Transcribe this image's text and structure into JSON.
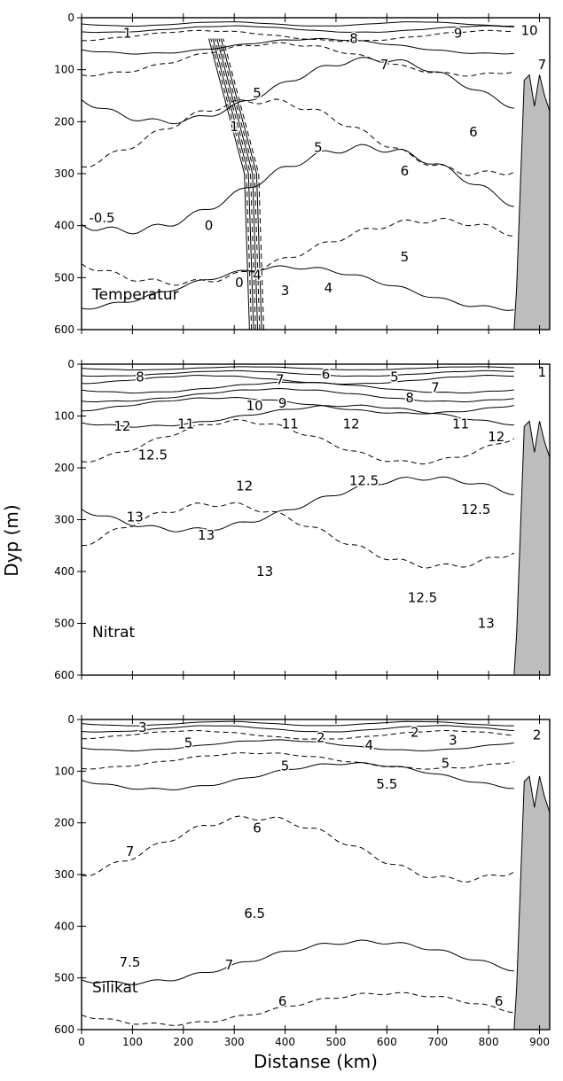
{
  "chart_data": {
    "type": "contour",
    "shared_xlabel": "Distanse (km)",
    "shared_ylabel": "Dyp (m)",
    "xlim": [
      0,
      920
    ],
    "ylim": [
      600,
      0
    ],
    "x_ticks": [
      "0",
      "100",
      "200",
      "300",
      "400",
      "500",
      "600",
      "700",
      "800",
      "900"
    ],
    "y_ticks": [
      "0",
      "100",
      "200",
      "300",
      "400",
      "500",
      "600"
    ],
    "land_boundary": {
      "x": [
        850,
        855,
        870,
        880,
        890,
        900,
        910,
        920,
        920
      ],
      "y": [
        600,
        520,
        120,
        110,
        170,
        110,
        150,
        180,
        0
      ]
    },
    "panels": [
      {
        "name": "Temperatur",
        "contour_labels": [
          {
            "text": "1",
            "x": 90,
            "y": 30
          },
          {
            "text": "8",
            "x": 535,
            "y": 40
          },
          {
            "text": "9",
            "x": 740,
            "y": 30
          },
          {
            "text": "10",
            "x": 880,
            "y": 25
          },
          {
            "text": "7",
            "x": 595,
            "y": 90
          },
          {
            "text": "7",
            "x": 905,
            "y": 90
          },
          {
            "text": "5",
            "x": 345,
            "y": 145
          },
          {
            "text": "1",
            "x": 300,
            "y": 210
          },
          {
            "text": "6",
            "x": 770,
            "y": 220
          },
          {
            "text": "5",
            "x": 465,
            "y": 250
          },
          {
            "text": "6",
            "x": 635,
            "y": 295
          },
          {
            "text": "-0.5",
            "x": 40,
            "y": 385
          },
          {
            "text": "0",
            "x": 250,
            "y": 400
          },
          {
            "text": "5",
            "x": 635,
            "y": 460
          },
          {
            "text": "0",
            "x": 310,
            "y": 510
          },
          {
            "text": "4",
            "x": 345,
            "y": 495
          },
          {
            "text": "3",
            "x": 400,
            "y": 525
          },
          {
            "text": "4",
            "x": 485,
            "y": 520
          }
        ]
      },
      {
        "name": "Nitrat",
        "contour_labels": [
          {
            "text": "8",
            "x": 115,
            "y": 25
          },
          {
            "text": "7",
            "x": 390,
            "y": 30
          },
          {
            "text": "6",
            "x": 480,
            "y": 20
          },
          {
            "text": "5",
            "x": 615,
            "y": 25
          },
          {
            "text": "7",
            "x": 695,
            "y": 45
          },
          {
            "text": "8",
            "x": 645,
            "y": 65
          },
          {
            "text": "1",
            "x": 905,
            "y": 15
          },
          {
            "text": "10",
            "x": 340,
            "y": 80
          },
          {
            "text": "9",
            "x": 395,
            "y": 75
          },
          {
            "text": "12",
            "x": 80,
            "y": 120
          },
          {
            "text": "11",
            "x": 205,
            "y": 115
          },
          {
            "text": "11",
            "x": 410,
            "y": 115
          },
          {
            "text": "12",
            "x": 530,
            "y": 115
          },
          {
            "text": "11",
            "x": 745,
            "y": 115
          },
          {
            "text": "12",
            "x": 815,
            "y": 140
          },
          {
            "text": "12.5",
            "x": 140,
            "y": 175
          },
          {
            "text": "12",
            "x": 320,
            "y": 235
          },
          {
            "text": "12.5",
            "x": 555,
            "y": 225
          },
          {
            "text": "12.5",
            "x": 775,
            "y": 280
          },
          {
            "text": "13",
            "x": 105,
            "y": 295
          },
          {
            "text": "13",
            "x": 245,
            "y": 330
          },
          {
            "text": "13",
            "x": 360,
            "y": 400
          },
          {
            "text": "12.5",
            "x": 670,
            "y": 450
          },
          {
            "text": "13",
            "x": 795,
            "y": 500
          }
        ]
      },
      {
        "name": "Silikat",
        "contour_labels": [
          {
            "text": "3",
            "x": 120,
            "y": 15
          },
          {
            "text": "5",
            "x": 210,
            "y": 45
          },
          {
            "text": "2",
            "x": 470,
            "y": 35
          },
          {
            "text": "4",
            "x": 565,
            "y": 50
          },
          {
            "text": "2",
            "x": 655,
            "y": 25
          },
          {
            "text": "3",
            "x": 730,
            "y": 40
          },
          {
            "text": "2",
            "x": 895,
            "y": 30
          },
          {
            "text": "5",
            "x": 400,
            "y": 90
          },
          {
            "text": "5",
            "x": 715,
            "y": 85
          },
          {
            "text": "5.5",
            "x": 600,
            "y": 125
          },
          {
            "text": "6",
            "x": 345,
            "y": 210
          },
          {
            "text": "7",
            "x": 95,
            "y": 255
          },
          {
            "text": "6.5",
            "x": 340,
            "y": 375
          },
          {
            "text": "7.5",
            "x": 95,
            "y": 470
          },
          {
            "text": "7",
            "x": 290,
            "y": 475
          },
          {
            "text": "6",
            "x": 395,
            "y": 545
          },
          {
            "text": "6",
            "x": 820,
            "y": 545
          }
        ]
      }
    ]
  }
}
